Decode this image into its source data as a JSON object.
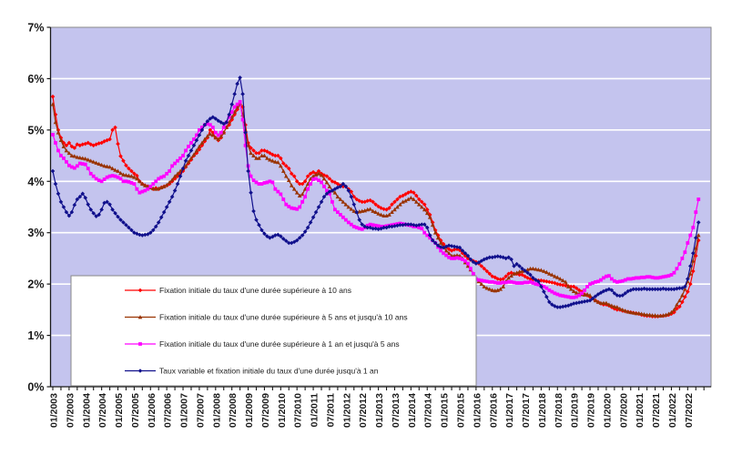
{
  "chart_data": {
    "type": "line",
    "title": "",
    "xlabel": "",
    "ylabel": "",
    "x_start": "01/2003",
    "x_frequency": "monthly",
    "x_tick_labels": [
      "01/2003",
      "07/2003",
      "01/2004",
      "07/2004",
      "01/2005",
      "07/2005",
      "01/2006",
      "07/2006",
      "01/2007",
      "07/2007",
      "01/2008",
      "07/2008",
      "01/2009",
      "07/2009",
      "01/2010",
      "07/2010",
      "01/2011",
      "07/2011",
      "01/2012",
      "07/2012",
      "01/2013",
      "07/2013",
      "01/2014",
      "07/2014",
      "01/2015",
      "07/2015",
      "01/2016",
      "07/2016",
      "01/2017",
      "07/2017",
      "01/2018",
      "07/2018",
      "01/2019",
      "07/2019",
      "01/2020",
      "07/2020",
      "01/2021",
      "07/2021",
      "01/2022",
      "07/2022"
    ],
    "y_tick_labels": [
      "0%",
      "1%",
      "2%",
      "3%",
      "4%",
      "5%",
      "6%",
      "7%"
    ],
    "ylim": [
      0,
      7
    ],
    "grid": "horizontal-white",
    "legend_position": "inside-bottom-left",
    "colors": {
      "plot_background": "#c4c4ee",
      "gridline": "#ffffff",
      "axis": "#1a1a1a",
      "legend_border": "#888888",
      "legend_background": "#ffffff"
    },
    "series": [
      {
        "name": "Fixation initiale du taux d'une durée supérieure à 10 ans",
        "color": "#ff0000",
        "marker": "diamond",
        "values": [
          5.65,
          5.3,
          5.0,
          4.85,
          4.75,
          4.7,
          4.75,
          4.68,
          4.65,
          4.72,
          4.7,
          4.72,
          4.73,
          4.75,
          4.72,
          4.7,
          4.72,
          4.74,
          4.75,
          4.78,
          4.8,
          4.82,
          5.0,
          5.05,
          4.73,
          4.49,
          4.4,
          4.31,
          4.25,
          4.2,
          4.15,
          4.11,
          4.0,
          3.95,
          3.92,
          3.9,
          3.88,
          3.85,
          3.87,
          3.85,
          3.88,
          3.9,
          3.92,
          3.95,
          4.0,
          4.05,
          4.1,
          4.15,
          4.2,
          4.28,
          4.35,
          4.42,
          4.5,
          4.55,
          4.62,
          4.7,
          4.78,
          4.85,
          5.0,
          4.95,
          4.85,
          4.8,
          4.85,
          4.95,
          5.05,
          5.1,
          5.2,
          5.3,
          5.4,
          5.5,
          5.45,
          5.1,
          4.75,
          4.65,
          4.6,
          4.55,
          4.55,
          4.6,
          4.6,
          4.58,
          4.55,
          4.52,
          4.5,
          4.5,
          4.45,
          4.35,
          4.3,
          4.25,
          4.15,
          4.1,
          4.0,
          3.95,
          3.95,
          4.0,
          4.1,
          4.15,
          4.18,
          4.15,
          4.2,
          4.15,
          4.12,
          4.1,
          4.05,
          4.0,
          3.98,
          3.95,
          3.92,
          3.9,
          3.9,
          3.85,
          3.8,
          3.7,
          3.65,
          3.62,
          3.6,
          3.6,
          3.62,
          3.63,
          3.6,
          3.55,
          3.51,
          3.48,
          3.46,
          3.45,
          3.48,
          3.55,
          3.6,
          3.65,
          3.7,
          3.72,
          3.75,
          3.78,
          3.8,
          3.78,
          3.72,
          3.65,
          3.6,
          3.55,
          3.45,
          3.35,
          3.2,
          3.05,
          2.95,
          2.85,
          2.78,
          2.72,
          2.68,
          2.65,
          2.67,
          2.68,
          2.66,
          2.6,
          2.55,
          2.5,
          2.47,
          2.45,
          2.43,
          2.4,
          2.35,
          2.3,
          2.25,
          2.2,
          2.15,
          2.13,
          2.1,
          2.09,
          2.1,
          2.15,
          2.2,
          2.22,
          2.2,
          2.2,
          2.18,
          2.18,
          2.15,
          2.12,
          2.1,
          2.09,
          2.08,
          2.07,
          2.07,
          2.06,
          2.05,
          2.04,
          2.03,
          2.02,
          2.0,
          1.99,
          1.98,
          1.97,
          1.96,
          1.95,
          1.95,
          1.92,
          1.88,
          1.85,
          1.8,
          1.78,
          1.75,
          1.72,
          1.68,
          1.65,
          1.62,
          1.6,
          1.6,
          1.58,
          1.55,
          1.52,
          1.5,
          1.5,
          1.48,
          1.47,
          1.46,
          1.45,
          1.44,
          1.43,
          1.42,
          1.4,
          1.39,
          1.38,
          1.38,
          1.37,
          1.37,
          1.37,
          1.38,
          1.38,
          1.39,
          1.4,
          1.42,
          1.45,
          1.52,
          1.56,
          1.65,
          1.75,
          1.85,
          2.0,
          2.25,
          2.55,
          2.85
        ]
      },
      {
        "name": "Fixation initiale du taux d'une durée supérieure à 5 ans et  jusqu'à 10 ans",
        "color": "#993300",
        "marker": "triangle",
        "values": [
          5.5,
          5.15,
          4.95,
          4.8,
          4.68,
          4.6,
          4.55,
          4.5,
          4.49,
          4.47,
          4.46,
          4.45,
          4.44,
          4.42,
          4.4,
          4.38,
          4.36,
          4.34,
          4.32,
          4.3,
          4.29,
          4.28,
          4.25,
          4.22,
          4.2,
          4.16,
          4.13,
          4.12,
          4.11,
          4.1,
          4.08,
          4.05,
          4.0,
          3.95,
          3.92,
          3.9,
          3.88,
          3.86,
          3.85,
          3.86,
          3.88,
          3.9,
          3.93,
          3.98,
          4.03,
          4.1,
          4.15,
          4.2,
          4.25,
          4.3,
          4.38,
          4.45,
          4.52,
          4.6,
          4.68,
          4.75,
          4.82,
          4.88,
          4.92,
          4.9,
          4.85,
          4.82,
          4.88,
          4.95,
          5.05,
          5.15,
          5.25,
          5.35,
          5.45,
          5.5,
          5.3,
          5.0,
          4.7,
          4.55,
          4.5,
          4.45,
          4.45,
          4.5,
          4.5,
          4.45,
          4.42,
          4.4,
          4.38,
          4.37,
          4.3,
          4.2,
          4.1,
          4.02,
          3.92,
          3.85,
          3.78,
          3.72,
          3.75,
          3.85,
          3.95,
          4.05,
          4.1,
          4.13,
          4.15,
          4.12,
          4.05,
          3.98,
          3.9,
          3.82,
          3.78,
          3.7,
          3.65,
          3.6,
          3.55,
          3.5,
          3.46,
          3.42,
          3.4,
          3.41,
          3.42,
          3.43,
          3.45,
          3.46,
          3.42,
          3.4,
          3.37,
          3.35,
          3.33,
          3.33,
          3.35,
          3.4,
          3.45,
          3.5,
          3.55,
          3.6,
          3.62,
          3.65,
          3.68,
          3.65,
          3.6,
          3.55,
          3.5,
          3.45,
          3.38,
          3.3,
          3.15,
          3.0,
          2.9,
          2.8,
          2.72,
          2.65,
          2.6,
          2.55,
          2.55,
          2.56,
          2.55,
          2.5,
          2.42,
          2.35,
          2.28,
          2.2,
          2.1,
          2.05,
          2.0,
          1.95,
          1.92,
          1.9,
          1.88,
          1.87,
          1.88,
          1.9,
          1.95,
          2.05,
          2.12,
          2.16,
          2.2,
          2.22,
          2.24,
          2.25,
          2.26,
          2.28,
          2.3,
          2.3,
          2.29,
          2.28,
          2.27,
          2.25,
          2.23,
          2.2,
          2.18,
          2.15,
          2.13,
          2.1,
          2.07,
          2.04,
          1.95,
          1.9,
          1.86,
          1.83,
          1.81,
          1.8,
          1.79,
          1.8,
          1.78,
          1.72,
          1.68,
          1.65,
          1.63,
          1.63,
          1.63,
          1.6,
          1.58,
          1.56,
          1.55,
          1.52,
          1.5,
          1.48,
          1.46,
          1.45,
          1.44,
          1.43,
          1.43,
          1.42,
          1.41,
          1.4,
          1.4,
          1.39,
          1.39,
          1.38,
          1.38,
          1.39,
          1.4,
          1.42,
          1.45,
          1.5,
          1.6,
          1.68,
          1.78,
          1.9,
          2.05,
          2.2,
          2.45,
          2.7,
          2.95
        ]
      },
      {
        "name": "Fixation initiale du taux d'une durée supérieure à 1 an et  jusqu'à 5 ans",
        "color": "#ff00ff",
        "marker": "square",
        "values": [
          4.91,
          4.75,
          4.6,
          4.5,
          4.45,
          4.38,
          4.31,
          4.28,
          4.26,
          4.3,
          4.35,
          4.34,
          4.33,
          4.25,
          4.15,
          4.1,
          4.05,
          4.02,
          4.0,
          4.04,
          4.08,
          4.1,
          4.11,
          4.1,
          4.08,
          4.05,
          4.0,
          4.0,
          3.99,
          3.97,
          3.95,
          3.85,
          3.78,
          3.8,
          3.82,
          3.85,
          3.9,
          3.95,
          4.0,
          4.05,
          4.08,
          4.1,
          4.15,
          4.2,
          4.3,
          4.35,
          4.4,
          4.45,
          4.5,
          4.6,
          4.68,
          4.75,
          4.82,
          4.9,
          5.0,
          5.05,
          5.1,
          5.12,
          5.1,
          5.05,
          4.95,
          4.9,
          4.95,
          5.05,
          5.15,
          5.25,
          5.35,
          5.45,
          5.5,
          5.55,
          5.2,
          4.7,
          4.3,
          4.1,
          4.02,
          3.98,
          3.95,
          3.95,
          3.97,
          3.98,
          4.0,
          3.98,
          3.85,
          3.8,
          3.75,
          3.65,
          3.55,
          3.51,
          3.48,
          3.47,
          3.46,
          3.5,
          3.6,
          3.7,
          3.85,
          3.95,
          4.04,
          4.05,
          4.02,
          3.98,
          3.9,
          3.82,
          3.76,
          3.6,
          3.45,
          3.4,
          3.35,
          3.3,
          3.25,
          3.2,
          3.16,
          3.12,
          3.1,
          3.08,
          3.07,
          3.1,
          3.14,
          3.16,
          3.15,
          3.14,
          3.13,
          3.12,
          3.12,
          3.13,
          3.14,
          3.15,
          3.16,
          3.17,
          3.18,
          3.17,
          3.16,
          3.15,
          3.14,
          3.12,
          3.12,
          3.1,
          3.08,
          3.0,
          2.95,
          2.9,
          2.85,
          2.8,
          2.72,
          2.65,
          2.6,
          2.56,
          2.52,
          2.5,
          2.5,
          2.51,
          2.5,
          2.48,
          2.45,
          2.4,
          2.3,
          2.2,
          2.1,
          2.08,
          2.07,
          2.06,
          2.05,
          2.04,
          2.04,
          2.03,
          2.02,
          2.02,
          2.03,
          2.03,
          2.04,
          2.04,
          2.03,
          2.02,
          2.02,
          2.02,
          2.03,
          2.03,
          2.04,
          2.02,
          2.0,
          1.99,
          1.97,
          1.95,
          1.92,
          1.88,
          1.85,
          1.82,
          1.8,
          1.78,
          1.77,
          1.76,
          1.75,
          1.74,
          1.74,
          1.75,
          1.78,
          1.82,
          1.88,
          1.95,
          2.0,
          2.02,
          2.04,
          2.05,
          2.08,
          2.12,
          2.15,
          2.16,
          2.1,
          2.06,
          2.04,
          2.05,
          2.06,
          2.08,
          2.1,
          2.1,
          2.11,
          2.12,
          2.12,
          2.13,
          2.13,
          2.14,
          2.14,
          2.13,
          2.12,
          2.12,
          2.13,
          2.14,
          2.15,
          2.16,
          2.18,
          2.22,
          2.3,
          2.39,
          2.5,
          2.62,
          2.8,
          2.95,
          3.1,
          3.4,
          3.65
        ]
      },
      {
        "name": "Taux variable et fixation initiale du taux d'une durée jusqu'à 1 an",
        "color": "#10108c",
        "marker": "diamond",
        "values": [
          4.2,
          3.95,
          3.76,
          3.6,
          3.5,
          3.4,
          3.33,
          3.4,
          3.54,
          3.65,
          3.7,
          3.76,
          3.68,
          3.55,
          3.45,
          3.38,
          3.32,
          3.35,
          3.45,
          3.58,
          3.6,
          3.55,
          3.45,
          3.38,
          3.31,
          3.25,
          3.2,
          3.15,
          3.1,
          3.05,
          3.0,
          2.98,
          2.96,
          2.95,
          2.96,
          2.97,
          3.0,
          3.05,
          3.12,
          3.2,
          3.3,
          3.4,
          3.5,
          3.6,
          3.7,
          3.82,
          3.95,
          4.1,
          4.25,
          4.4,
          4.5,
          4.6,
          4.7,
          4.8,
          4.9,
          5.0,
          5.1,
          5.17,
          5.22,
          5.25,
          5.22,
          5.18,
          5.15,
          5.12,
          5.15,
          5.3,
          5.5,
          5.7,
          5.9,
          6.02,
          5.7,
          4.95,
          4.2,
          3.78,
          3.42,
          3.25,
          3.15,
          3.05,
          2.98,
          2.93,
          2.9,
          2.92,
          2.95,
          2.96,
          2.93,
          2.88,
          2.84,
          2.8,
          2.8,
          2.82,
          2.85,
          2.9,
          2.95,
          3.02,
          3.1,
          3.2,
          3.3,
          3.4,
          3.5,
          3.6,
          3.7,
          3.76,
          3.8,
          3.82,
          3.85,
          3.88,
          3.9,
          3.95,
          3.9,
          3.82,
          3.7,
          3.55,
          3.4,
          3.25,
          3.16,
          3.12,
          3.1,
          3.1,
          3.08,
          3.08,
          3.07,
          3.08,
          3.1,
          3.1,
          3.12,
          3.12,
          3.13,
          3.14,
          3.15,
          3.15,
          3.16,
          3.16,
          3.16,
          3.15,
          3.14,
          3.15,
          3.16,
          3.16,
          3.1,
          2.95,
          2.85,
          2.8,
          2.75,
          2.72,
          2.71,
          2.73,
          2.75,
          2.74,
          2.73,
          2.72,
          2.71,
          2.65,
          2.6,
          2.55,
          2.48,
          2.43,
          2.4,
          2.42,
          2.45,
          2.48,
          2.5,
          2.52,
          2.52,
          2.53,
          2.54,
          2.53,
          2.52,
          2.5,
          2.52,
          2.48,
          2.35,
          2.39,
          2.35,
          2.3,
          2.26,
          2.22,
          2.18,
          2.12,
          2.08,
          2.05,
          1.95,
          1.85,
          1.75,
          1.65,
          1.6,
          1.57,
          1.55,
          1.55,
          1.56,
          1.57,
          1.58,
          1.6,
          1.62,
          1.63,
          1.64,
          1.65,
          1.66,
          1.67,
          1.68,
          1.72,
          1.76,
          1.8,
          1.83,
          1.86,
          1.88,
          1.9,
          1.88,
          1.82,
          1.78,
          1.77,
          1.78,
          1.82,
          1.86,
          1.88,
          1.9,
          1.9,
          1.9,
          1.9,
          1.91,
          1.9,
          1.9,
          1.9,
          1.9,
          1.9,
          1.9,
          1.91,
          1.9,
          1.9,
          1.9,
          1.9,
          1.91,
          1.92,
          1.92,
          1.95,
          2.1,
          2.35,
          2.6,
          2.9,
          3.2
        ]
      }
    ]
  }
}
